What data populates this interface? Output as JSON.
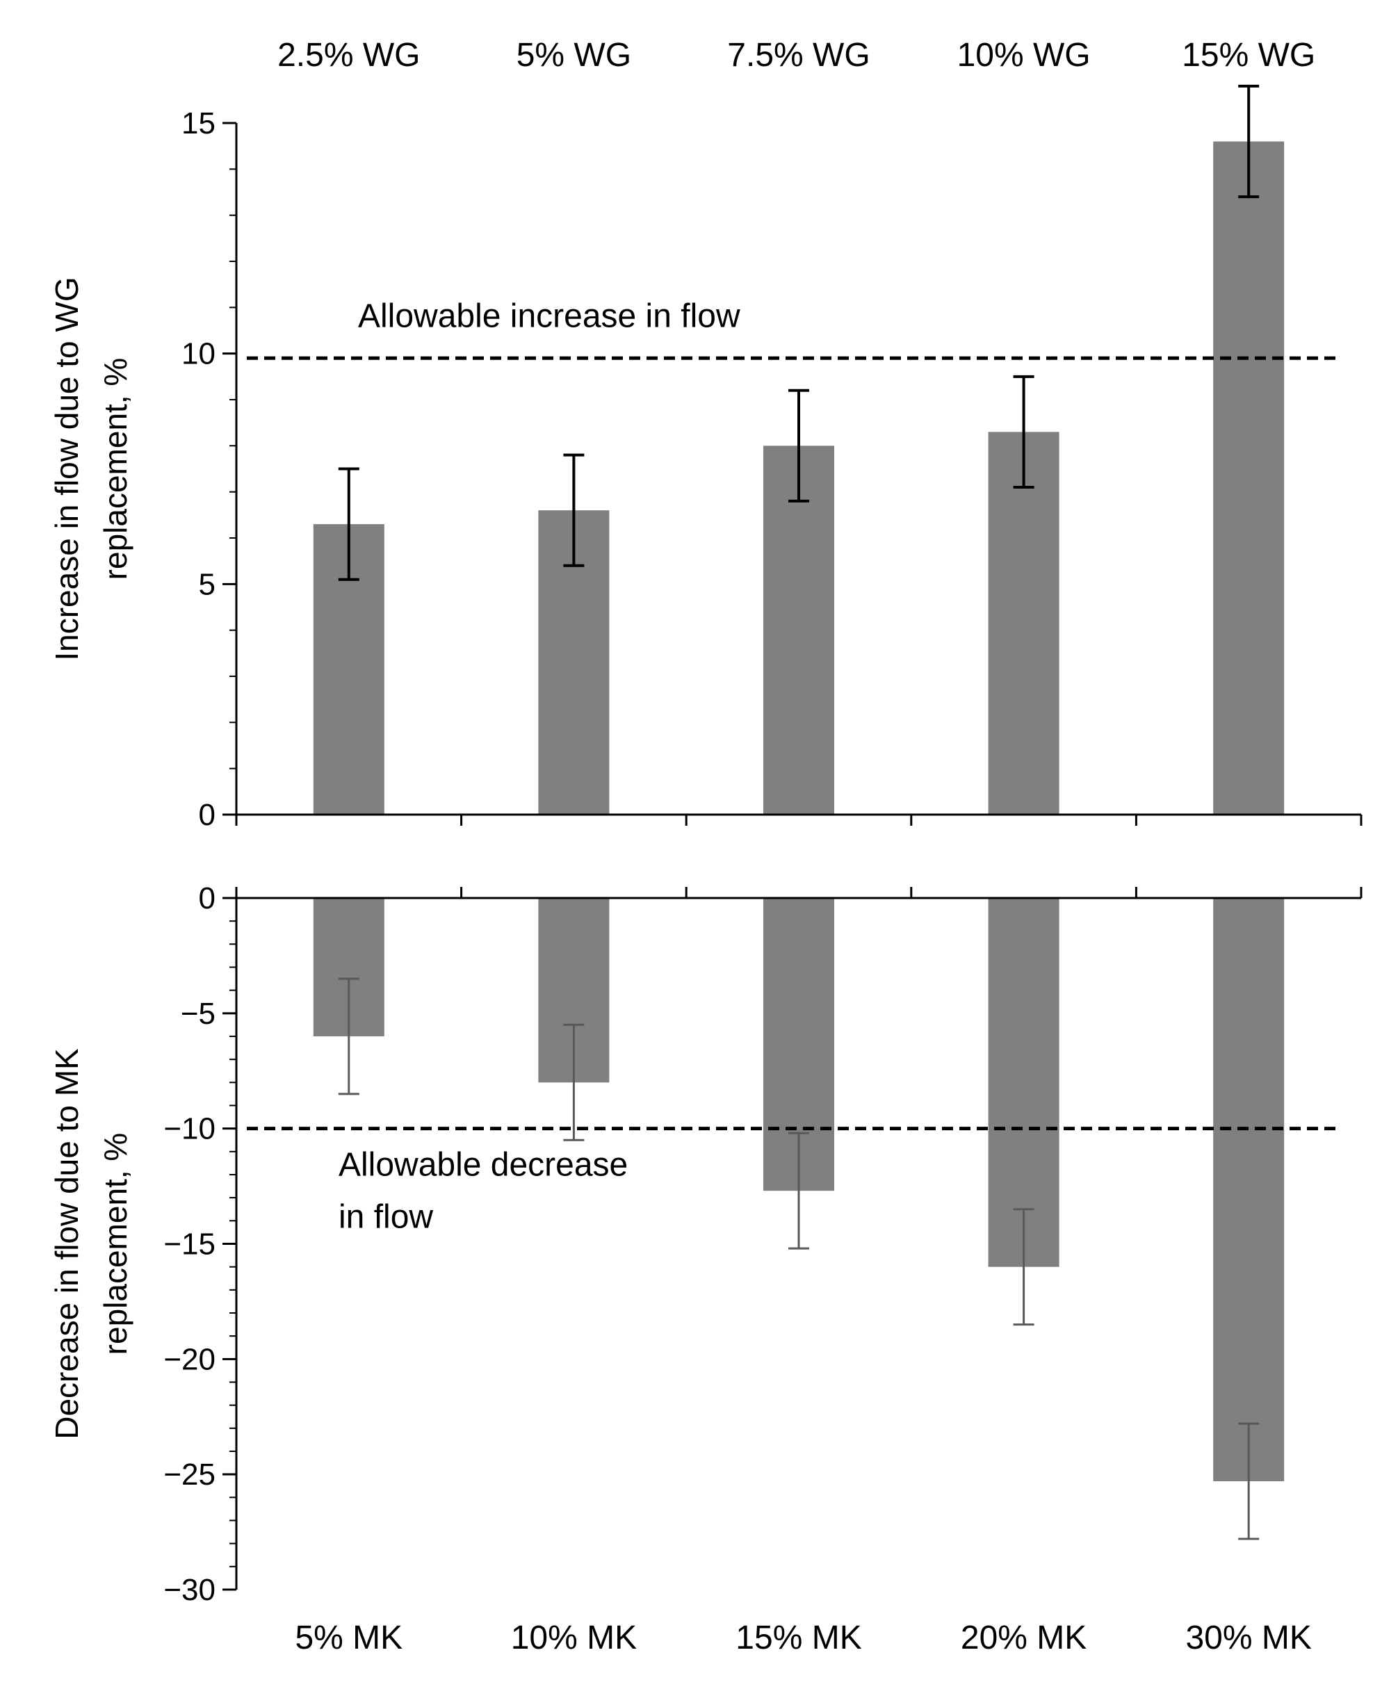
{
  "chart_data": [
    {
      "type": "bar",
      "panel": "top",
      "categories": [
        "2.5% WG",
        "5% WG",
        "7.5% WG",
        "10% WG",
        "15% WG"
      ],
      "values": [
        6.3,
        6.6,
        8.0,
        8.3,
        14.6
      ],
      "error": [
        1.2,
        1.2,
        1.2,
        1.2,
        1.2
      ],
      "ylabel_lines": [
        "Increase in flow due to WG",
        "replacement, %"
      ],
      "ylim": [
        0,
        15
      ],
      "yticks": [
        0,
        5,
        10,
        15
      ],
      "ytick_labels": [
        "0",
        "5",
        "10",
        "15"
      ],
      "category_position": "top",
      "reference_line": {
        "value": 9.9,
        "label": "Allowable increase in flow"
      },
      "bar_color": "#808080",
      "error_color": "#000000"
    },
    {
      "type": "bar",
      "panel": "bottom",
      "categories": [
        "5% MK",
        "10% MK",
        "15% MK",
        "20% MK",
        "30% MK"
      ],
      "values": [
        -6.0,
        -8.0,
        -12.7,
        -16.0,
        -25.3
      ],
      "error": [
        2.5,
        2.5,
        2.5,
        2.5,
        2.5
      ],
      "ylabel_lines": [
        "Decrease in flow due to MK",
        "replacement, %"
      ],
      "ylim": [
        -30,
        0
      ],
      "yticks": [
        0,
        -5,
        -10,
        -15,
        -20,
        -25,
        -30
      ],
      "ytick_labels": [
        "0",
        "−5",
        "−10",
        "−15",
        "−20",
        "−25",
        "−30"
      ],
      "category_position": "bottom",
      "reference_line": {
        "value": -10,
        "label_lines": [
          "Allowable decrease",
          "in flow"
        ]
      },
      "bar_color": "#808080",
      "error_color": "#595959"
    }
  ]
}
